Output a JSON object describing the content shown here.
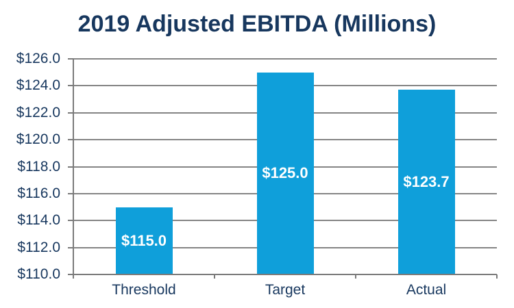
{
  "title": "2019 Adjusted EBITDA (Millions)",
  "colors": {
    "title_text": "#17375E",
    "axis_text": "#17375E",
    "bar_fill": "#0F9FDA",
    "bar_label_text": "#FFFFFF",
    "gridline": "#848484",
    "axis_line": "#7A7A7A",
    "background": "#FFFFFF"
  },
  "chart_data": {
    "type": "bar",
    "title": "2019 Adjusted EBITDA (Millions)",
    "categories": [
      "Threshold",
      "Target",
      "Actual"
    ],
    "values": [
      115.0,
      125.0,
      123.7
    ],
    "value_labels": [
      "$115.0",
      "$125.0",
      "$123.7"
    ],
    "xlabel": "",
    "ylabel": "",
    "ylim": [
      110.0,
      126.0
    ],
    "y_tick_step": 2.0,
    "y_tick_labels": [
      "$110.0",
      "$112.0",
      "$114.0",
      "$116.0",
      "$118.0",
      "$120.0",
      "$122.0",
      "$124.0",
      "$126.0"
    ],
    "grid": "horizontal",
    "legend": "none",
    "bar_label_position": "inside-center"
  }
}
